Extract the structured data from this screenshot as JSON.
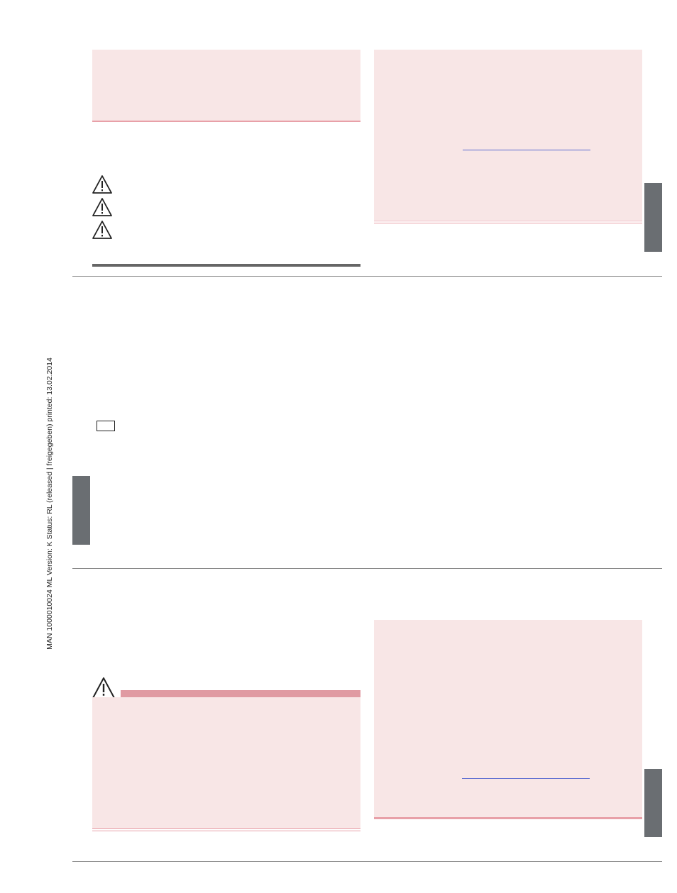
{
  "sidebar": {
    "doc_info": "MAN  1000010024  ML  Version: K  Status: RL (released | freigegeben)  printed: 13.02.2014"
  },
  "colors": {
    "pink_box": "#f8e6e6",
    "pink_rule": "#e8a0a8",
    "gray_tab": "#6a6e72",
    "rule_gray": "#8a8a8a",
    "link_blue": "#5a6ad0"
  },
  "icons": {
    "warning": "warning-triangle-icon",
    "checkbox": "empty-checkbox"
  }
}
